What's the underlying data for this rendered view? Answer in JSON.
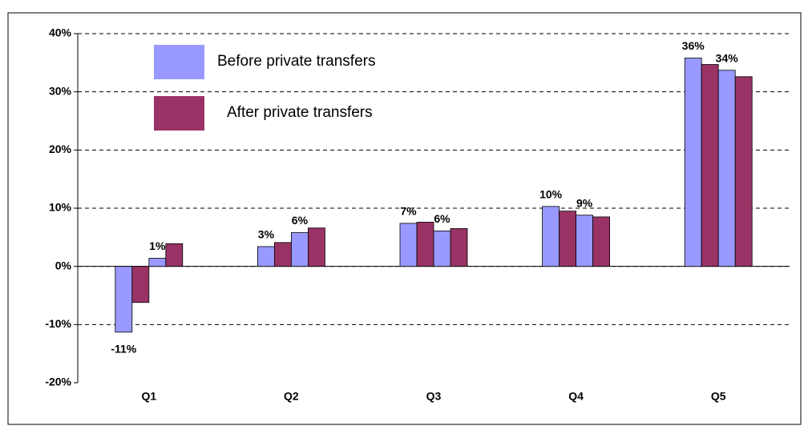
{
  "chart_data": {
    "type": "bar",
    "categories": [
      "Q1",
      "Q2",
      "Q3",
      "Q4",
      "Q5"
    ],
    "series": [
      {
        "name": "Before private transfers",
        "color": "#9999ff",
        "values": [
          -11.3,
          3.4,
          7.4,
          10.3,
          35.8
        ],
        "value_labels": [
          "-11%",
          "3%",
          "7%",
          "10%",
          "36%"
        ]
      },
      {
        "name": "After private transfers",
        "color": "#993366",
        "values": [
          -6.2,
          4.1,
          7.6,
          9.5,
          34.7
        ]
      },
      {
        "color": "#9999ff",
        "values": [
          1.4,
          5.8,
          6.1,
          8.8,
          33.7
        ],
        "value_labels": [
          "1%",
          "6%",
          "6%",
          "9%",
          "34%"
        ]
      },
      {
        "color": "#993366",
        "values": [
          3.9,
          6.6,
          6.5,
          8.5,
          32.6
        ]
      }
    ],
    "ylim": [
      -20,
      40
    ],
    "yticks": [
      {
        "value": -20,
        "label": "-20%"
      },
      {
        "value": -10,
        "label": "-10%"
      },
      {
        "value": 0,
        "label": "0%"
      },
      {
        "value": 10,
        "label": "10%"
      },
      {
        "value": 20,
        "label": "20%"
      },
      {
        "value": 30,
        "label": "30%"
      },
      {
        "value": 40,
        "label": "40%"
      }
    ],
    "grid": true
  }
}
